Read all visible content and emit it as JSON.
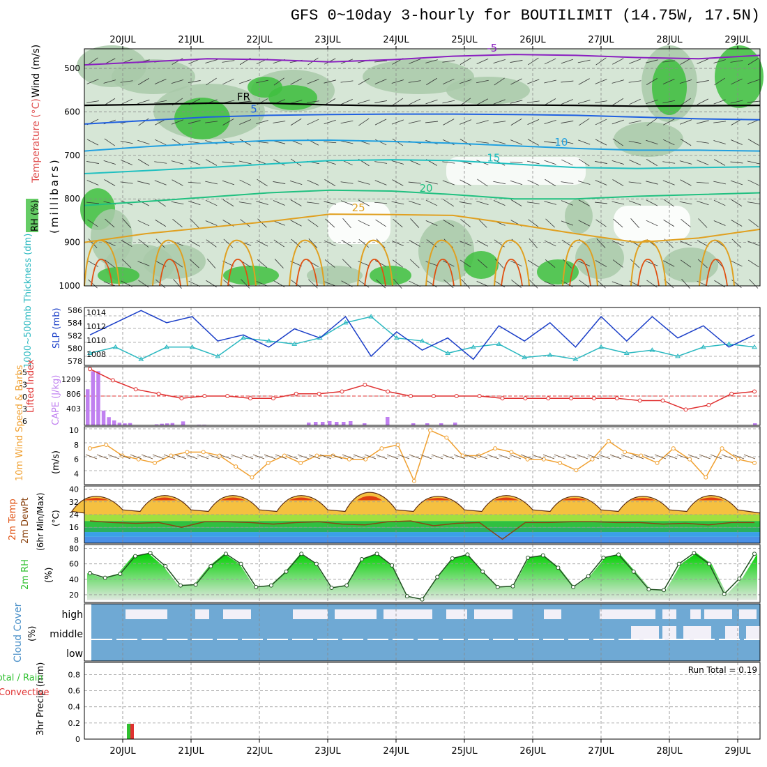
{
  "title": "GFS 0~10day 3-hourly for BOUTILIMIT (14.75W, 17.5N)",
  "colors": {
    "rh_dark": "#3fbf3f",
    "rh_mid": "#a9c9a9",
    "rh_light": "#d6e6d6",
    "t_purple": "#8a20c0",
    "t_blue": "#2060e0",
    "t_lightblue": "#20a0e0",
    "t_teal": "#20c0c0",
    "t_green": "#20c080",
    "t_orange": "#e0a020",
    "t_red": "#e05010",
    "slp": "#1a3ec8",
    "thickness": "#2ab8c0",
    "lifted": "#e03030",
    "cape": "#c080f0",
    "wind10": "#f0a030",
    "cloud": "#6fa9d4",
    "cloud_clear": "#f2f0f8",
    "precip_total": "#30c030",
    "precip_conv": "#e03030"
  },
  "chart_data": {
    "type": "multi-panel meteogram",
    "x_dates": [
      "20JUL",
      "21JUL",
      "22JUL",
      "23JUL",
      "24JUL",
      "25JUL",
      "26JUL",
      "27JUL",
      "28JUL",
      "29JUL"
    ],
    "x_range": [
      "19JUL 15Z",
      "29JUL 09Z"
    ],
    "panels": [
      {
        "name": "pressure-levels",
        "ylabel_parts": [
          "Wind (m/s)",
          "Temperature (°C)",
          "RH (%)"
        ],
        "yunit": "(millibars)",
        "yticks": [
          500,
          600,
          700,
          800,
          900,
          1000
        ],
        "ylim": [
          1000,
          455
        ],
        "temperature_contour_labels": [
          "-5",
          "FR",
          "5",
          "10",
          "15",
          "20",
          "25"
        ],
        "temperature_levels": [
          {
            "label": "-5",
            "p": [
              492,
              485,
              478,
              480,
              485,
              480,
              472,
              468,
              470,
              475,
              478,
              470
            ]
          },
          {
            "label": "FR",
            "p": [
              585,
              583,
              580,
              580,
              584,
              586,
              585,
              584,
              585,
              587,
              586,
              585
            ]
          },
          {
            "label": "5",
            "p": [
              628,
              620,
              612,
              608,
              606,
              605,
              605,
              606,
              608,
              612,
              616,
              618
            ]
          },
          {
            "label": "10",
            "p": [
              690,
              680,
              672,
              666,
              665,
              668,
              672,
              678,
              684,
              688,
              688,
              690
            ]
          },
          {
            "label": "15",
            "p": [
              742,
              735,
              728,
              720,
              712,
              710,
              712,
              720,
              728,
              730,
              728,
              726
            ]
          },
          {
            "label": "20",
            "p": [
              815,
              806,
              796,
              786,
              780,
              782,
              790,
              800,
              800,
              794,
              790,
              786
            ]
          },
          {
            "label": "25",
            "p": [
              900,
              880,
              866,
              852,
              835,
              836,
              838,
              858,
              880,
              900,
              890,
              870
            ]
          }
        ]
      },
      {
        "name": "slp-thickness",
        "ylabel_left": "1000~500mb Thickness (dm)",
        "ylabel_right": "SLP (mb)",
        "left_ticks": [
          578,
          580,
          582,
          584,
          586
        ],
        "right_ticks": [
          1008,
          1010,
          1012,
          1014
        ],
        "slp": [
          1011.5,
          1013.5,
          1015.5,
          1013.5,
          1014.5,
          1010.5,
          1011.5,
          1009.5,
          1012.5,
          1011.0,
          1014.5,
          1008.0,
          1012.0,
          1009.0,
          1011.0,
          1007.5,
          1013.0,
          1010.5,
          1013.5,
          1009.5,
          1014.5,
          1010.5,
          1014.5,
          1011.0,
          1013.0,
          1009.5,
          1011.5
        ],
        "thickness": [
          579.5,
          580.5,
          578.5,
          580.5,
          580.5,
          579.0,
          582.0,
          581.5,
          581.0,
          582.0,
          584.5,
          585.5,
          582.0,
          581.5,
          579.5,
          580.5,
          581.0,
          578.8,
          579.2,
          578.5,
          580.5,
          579.5,
          580.0,
          579.0,
          580.5,
          581.0,
          580.5
        ]
      },
      {
        "name": "cape-lifted",
        "ylabel_left": "Lifted Index",
        "ylabel_right": "CAPE (J/kg)",
        "left_ticks": [
          "-5",
          "-3",
          "0",
          "3",
          "6"
        ],
        "right_ticks": [
          "1209",
          "806",
          "403"
        ],
        "lifted_index": [
          -6.0,
          -3.5,
          -1.5,
          -0.5,
          0.5,
          0.0,
          0.0,
          0.5,
          0.5,
          -0.5,
          -0.5,
          -1.0,
          -2.5,
          -1.0,
          0.0,
          0.0,
          0.0,
          0.0,
          0.5,
          0.5,
          0.5,
          0.5,
          0.5,
          0.5,
          1.0,
          1.0,
          3.0,
          2.0,
          -0.5,
          -1.0
        ],
        "cape": [
          1100,
          1650,
          1650,
          450,
          250,
          150,
          80,
          60,
          70,
          0,
          0,
          0,
          0,
          30,
          50,
          60,
          70,
          0,
          120,
          0,
          10,
          20,
          20,
          0,
          0,
          0,
          0,
          0,
          0,
          0,
          10
        ]
      },
      {
        "name": "wind10",
        "ylabel": "10m Wind Speed & Barbs (m/s)",
        "yticks": [
          4,
          6,
          8,
          10
        ],
        "wind_speed": [
          7.5,
          8.0,
          6.5,
          6.0,
          5.5,
          6.5,
          7.0,
          7.0,
          6.5,
          5.0,
          3.5,
          5.5,
          6.5,
          5.5,
          6.5,
          6.5,
          6.0,
          6.0,
          7.5,
          8.0,
          3.0,
          10.0,
          9.0,
          6.5,
          6.5,
          7.5,
          7.0,
          6.0,
          6.0,
          5.5,
          4.5,
          6.0,
          8.5,
          7.0,
          6.5,
          5.5,
          7.5,
          6.0,
          3.5,
          7.5,
          6.0,
          5.5
        ]
      },
      {
        "name": "temp2m",
        "ylabel": "2m Temp 2m DewPt (6hr Min/Max) (°C)",
        "yticks": [
          8,
          16,
          24,
          32,
          40
        ],
        "temp_max": [
          35.5,
          36,
          36,
          36,
          38,
          35.5,
          36,
          35.5,
          35.5,
          36
        ],
        "temp_min": [
          26,
          26,
          26,
          26,
          26,
          26,
          26,
          26,
          26,
          26
        ],
        "dewpoint": [
          20,
          19,
          18.5,
          19,
          16,
          19.5,
          19.5,
          19,
          18,
          19,
          19.5,
          18,
          17.5,
          19.5,
          20,
          17,
          18.5,
          19,
          8.5,
          19,
          19,
          19.5,
          19.5,
          19,
          19,
          18,
          18.5,
          17.5,
          19,
          19
        ]
      },
      {
        "name": "rh2m",
        "ylabel": "2m RH (%)",
        "yticks": [
          20,
          40,
          60,
          80
        ],
        "rh": [
          48,
          42,
          47,
          70,
          74,
          57,
          32,
          33,
          57,
          73,
          60,
          30,
          32,
          50,
          73,
          60,
          29,
          32,
          66,
          73,
          58,
          18,
          14,
          43,
          67,
          72,
          50,
          30,
          31,
          68,
          71,
          55,
          30,
          44,
          68,
          72,
          50,
          27,
          26,
          60,
          74,
          60,
          21,
          41,
          73
        ]
      },
      {
        "name": "cloud-cover",
        "ylabel": "Cloud Cover (%)",
        "levels": [
          "high",
          "middle",
          "low"
        ]
      },
      {
        "name": "precip",
        "ylabel": "3hr Precip (mm)",
        "legend": [
          "Total / Rain",
          "Convective"
        ],
        "yticks": [
          "0",
          "0.2",
          "0.4",
          "0.6",
          "0.8"
        ],
        "annotation": "Run Total = 0.19",
        "bars": [
          {
            "x": "20JUL 03Z",
            "total": 0.19,
            "convective": 0.19
          }
        ]
      }
    ]
  },
  "labels": {
    "wind_label": "Wind (m/s)",
    "temperature_label": "Temperature (°C)",
    "rh_label": "RH (%)",
    "millibars_label": "(millibars)",
    "thickness_label": "1000~500mb Thickness (dm)",
    "slp_label": "SLP (mb)",
    "lifted_label": "Lifted Index",
    "cape_label": "CAPE (J/kg)",
    "wind10_label": "10m Wind Speed & Barbs",
    "wind10_unit": "(m/s)",
    "temp2m_label1": "2m Temp",
    "temp2m_label2": "2m DewPt",
    "temp2m_label3": "(6hr Min/Max)",
    "temp2m_unit": "(°C)",
    "rh2m_label": "2m RH",
    "rh2m_unit": "(%)",
    "cloud_label": "Cloud Cover",
    "cloud_unit": "(%)",
    "precip_label": "3hr Precip (mm)",
    "precip_total_label": "Total / Rain",
    "precip_conv_label": "Convective",
    "run_total": "Run Total = 0.19"
  }
}
